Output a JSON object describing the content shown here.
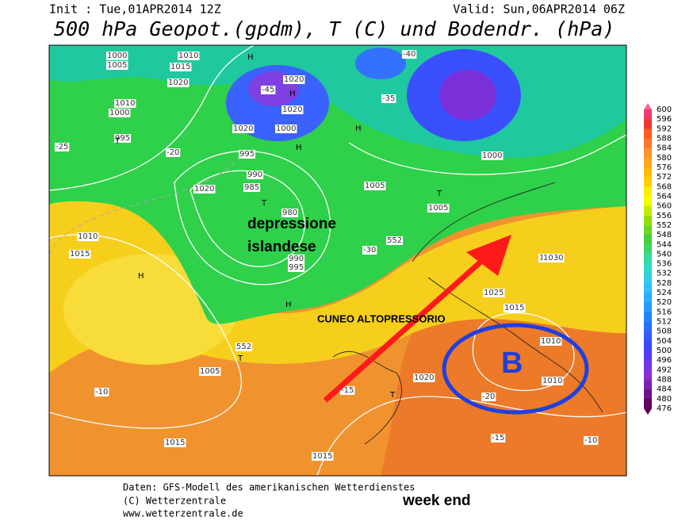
{
  "header": {
    "init": "Init : Tue,01APR2014 12Z",
    "valid": "Valid: Sun,06APR2014 06Z",
    "title": "500 hPa Geopot.(gpdm), T (C) und Bodendr. (hPa)"
  },
  "map": {
    "annotations": [
      "depressione",
      "islandese",
      "CUNEO ALTOPRESSORIO",
      "B"
    ],
    "labels": [
      "1000",
      "1010",
      "1005",
      "1015",
      "1020",
      "H",
      "1010",
      "1000",
      "995",
      "T",
      "1020",
      "1020",
      "1020",
      "1000",
      "995",
      "990",
      "985",
      "980",
      "990",
      "995",
      "H",
      "H",
      "T",
      "1005",
      "1000",
      "H",
      "T",
      "1005",
      "1015",
      "1020",
      "1025",
      "1030",
      "1020",
      "1015",
      "1010",
      "1010",
      "1005",
      "1010",
      "1015",
      "1015",
      "1020",
      "H",
      "H",
      "T",
      "T",
      "-25",
      "-20",
      "-15",
      "-10",
      "-40",
      "-45",
      "-35",
      "-30",
      "-20",
      "-15",
      "-10",
      "552",
      "552"
    ]
  },
  "legend": {
    "colorbar_labels": [
      600,
      596,
      592,
      588,
      584,
      580,
      576,
      572,
      568,
      564,
      560,
      556,
      552,
      548,
      544,
      540,
      536,
      532,
      528,
      524,
      520,
      516,
      512,
      508,
      504,
      500,
      496,
      492,
      488,
      484,
      480,
      476
    ]
  },
  "footer": {
    "source": "Daten: GFS-Modell des amerikanischen Wetterdienstes",
    "copyright": "(C) Wetterzentrale",
    "url": "www.wetterzentrale.de",
    "note": "week end"
  }
}
